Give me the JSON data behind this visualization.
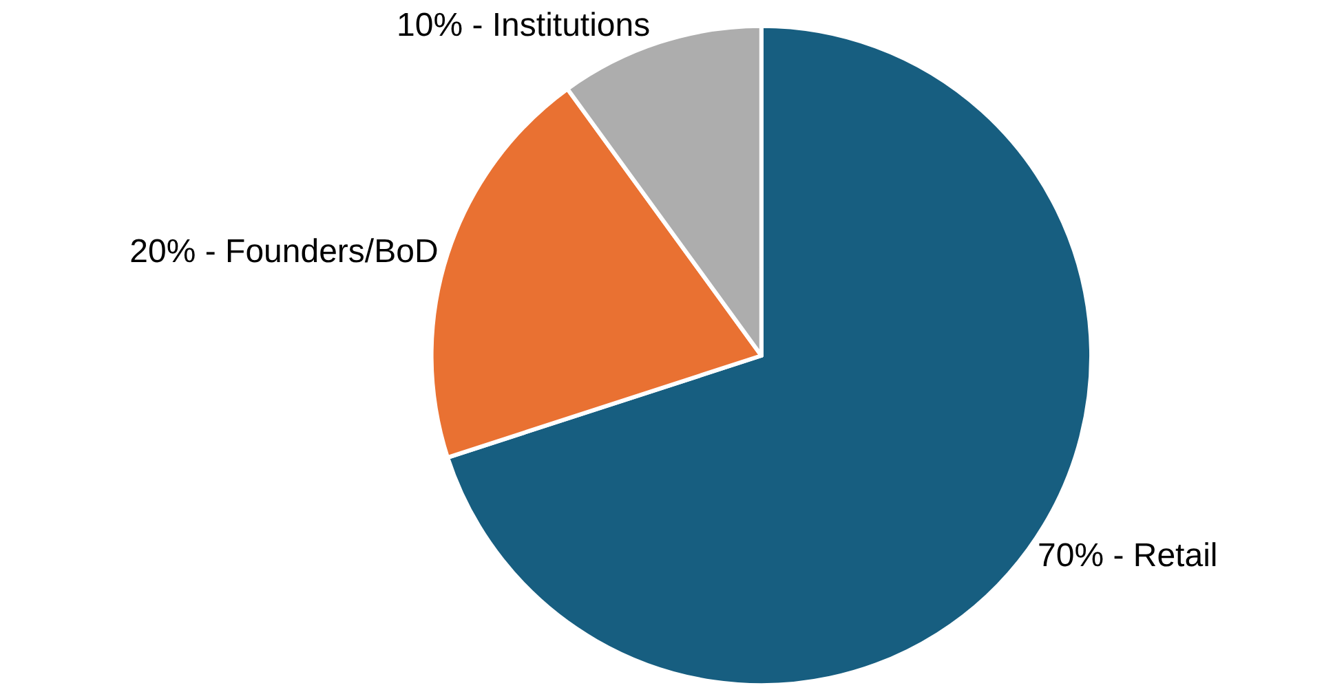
{
  "chart_data": {
    "type": "pie",
    "categories": [
      "70% - Retail",
      "20% - Founders/BoD",
      "10% - Institutions"
    ],
    "values": [
      70,
      20,
      10
    ],
    "colors": [
      "#175e80",
      "#e97132",
      "#adadad"
    ],
    "legend": false
  }
}
